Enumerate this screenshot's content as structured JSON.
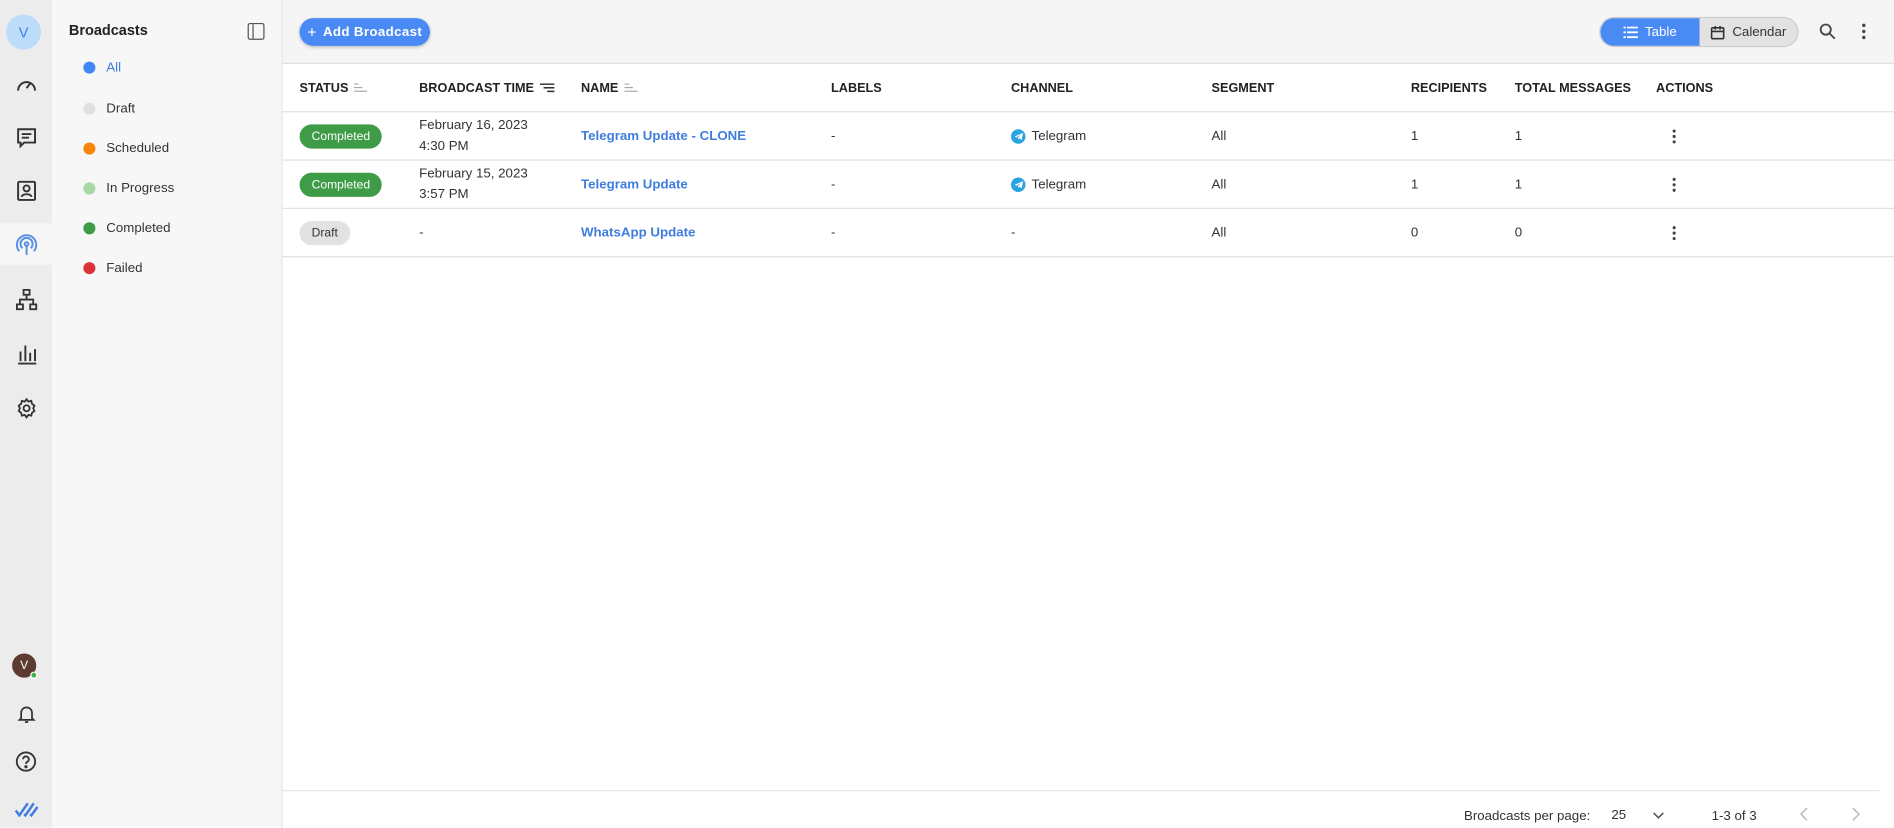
{
  "rail": {
    "workspace_initial": "V",
    "user_initial": "V",
    "icons": [
      "dashboard-icon",
      "conversations-icon",
      "contacts-icon",
      "broadcasts-icon",
      "workflows-icon",
      "reports-icon",
      "settings-icon"
    ],
    "active": "broadcasts-icon"
  },
  "sidebar": {
    "title": "Broadcasts",
    "items": [
      {
        "label": "All",
        "color": "#4285f4",
        "active": true
      },
      {
        "label": "Draft",
        "color": "#e0e0e0"
      },
      {
        "label": "Scheduled",
        "color": "#f5870c"
      },
      {
        "label": "In Progress",
        "color": "#a6d8a8"
      },
      {
        "label": "Completed",
        "color": "#3e9c47"
      },
      {
        "label": "Failed",
        "color": "#d9343a"
      }
    ]
  },
  "toolbar": {
    "add_label": "Add Broadcast",
    "view_table": "Table",
    "view_calendar": "Calendar",
    "active_view": "Table"
  },
  "table": {
    "columns": [
      "STATUS",
      "BROADCAST TIME",
      "NAME",
      "LABELS",
      "CHANNEL",
      "SEGMENT",
      "RECIPIENTS",
      "TOTAL MESSAGES",
      "ACTIONS"
    ],
    "rows": [
      {
        "status": "Completed",
        "date": "February 16, 2023",
        "time": "4:30 PM",
        "name": "Telegram Update - CLONE",
        "labels": "-",
        "channel": "Telegram",
        "segment": "All",
        "recipients": "1",
        "total": "1"
      },
      {
        "status": "Completed",
        "date": "February 15, 2023",
        "time": "3:57 PM",
        "name": "Telegram Update",
        "labels": "-",
        "channel": "Telegram",
        "segment": "All",
        "recipients": "1",
        "total": "1"
      },
      {
        "status": "Draft",
        "date": "-",
        "time": "",
        "name": "WhatsApp Update",
        "labels": "-",
        "channel": "-",
        "segment": "All",
        "recipients": "0",
        "total": "0"
      }
    ]
  },
  "footer": {
    "per_page_label": "Broadcasts per page:",
    "per_page_value": "25",
    "range": "1-3 of 3"
  },
  "colors": {
    "accent": "#4a8af4",
    "completed": "#3e9c47",
    "link": "#3f7de0"
  }
}
